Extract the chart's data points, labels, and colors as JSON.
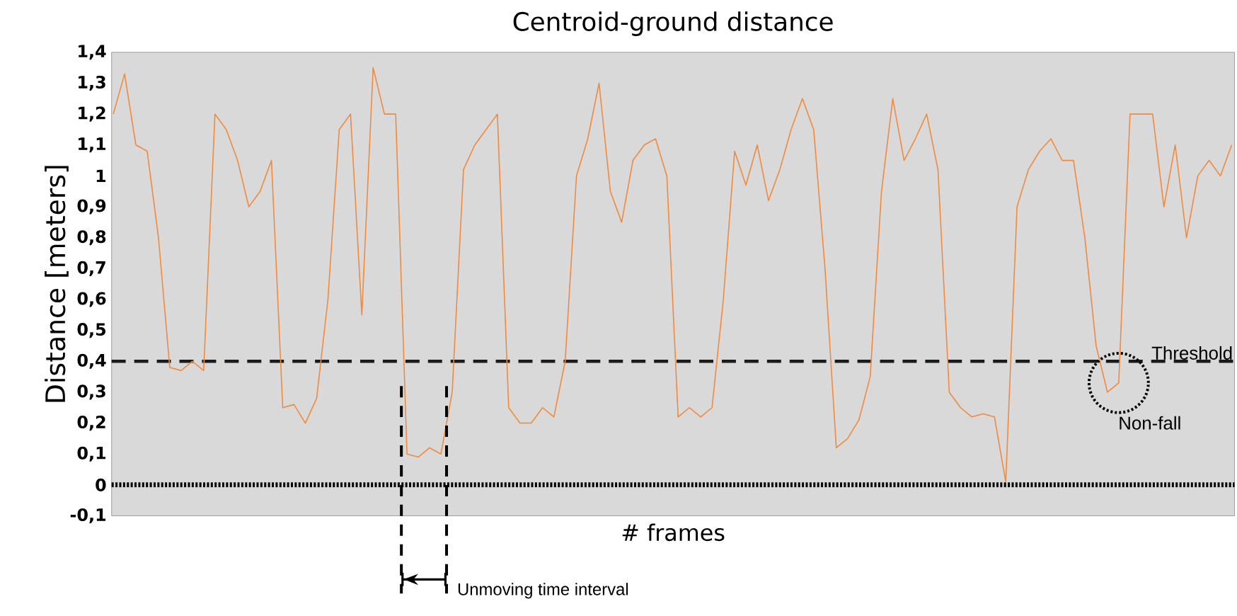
{
  "chart_data": {
    "type": "line",
    "title": "Centroid-ground distance",
    "xlabel": "# frames",
    "ylabel": "Distance [meters]",
    "categories": [
      null,
      null,
      null,
      null,
      null,
      null,
      null,
      null,
      null,
      null,
      null,
      null,
      null,
      null,
      null,
      null,
      null,
      null,
      null,
      null,
      null,
      null,
      null,
      null,
      null,
      null,
      null,
      null,
      null,
      null,
      null,
      null,
      null,
      null,
      null,
      null,
      null,
      null,
      null,
      null,
      null,
      null,
      null,
      null,
      null,
      null,
      null,
      null,
      null,
      null,
      null,
      null,
      null,
      null,
      null,
      null,
      null,
      null,
      null,
      null,
      null,
      null,
      null,
      null,
      null,
      null,
      null,
      null,
      null,
      null,
      null,
      null,
      null,
      null,
      null,
      null,
      null,
      null,
      null,
      null,
      null,
      null,
      null,
      null,
      null,
      null,
      null,
      null,
      null,
      null,
      null,
      null,
      null,
      null,
      null,
      null,
      null,
      null,
      null,
      null
    ],
    "series": [
      {
        "color": "#f08a3c",
        "values": [
          1.2,
          1.33,
          1.1,
          1.08,
          0.8,
          0.38,
          0.37,
          0.4,
          0.37,
          1.2,
          1.15,
          1.05,
          0.9,
          0.95,
          1.05,
          0.25,
          0.26,
          0.2,
          0.28,
          0.6,
          1.15,
          1.2,
          0.55,
          1.35,
          1.2,
          1.2,
          0.1,
          0.09,
          0.12,
          0.1,
          0.3,
          1.02,
          1.1,
          1.15,
          1.2,
          0.25,
          0.2,
          0.2,
          0.25,
          0.22,
          0.4,
          1.0,
          1.12,
          1.3,
          0.95,
          0.85,
          1.05,
          1.1,
          1.12,
          1.0,
          0.22,
          0.25,
          0.22,
          0.25,
          0.6,
          1.08,
          0.97,
          1.1,
          0.92,
          1.02,
          1.15,
          1.25,
          1.15,
          0.7,
          0.12,
          0.15,
          0.21,
          0.35,
          0.95,
          1.25,
          1.05,
          1.12,
          1.2,
          1.02,
          0.3,
          0.25,
          0.22,
          0.23,
          0.22,
          0.01,
          0.9,
          1.02,
          1.08,
          1.12,
          1.05,
          1.05,
          0.8,
          0.45,
          0.3,
          0.33,
          1.2,
          1.2,
          1.2,
          0.9,
          1.1,
          0.8,
          1.0,
          1.05,
          1.0,
          1.1
        ]
      }
    ],
    "marker": "none",
    "line_style": "solid",
    "ylim": [
      -0.1,
      1.4
    ],
    "yticks": [
      {
        "value": -0.1,
        "label": "-0,1"
      },
      {
        "value": 0,
        "label": "0"
      },
      {
        "value": 0.1,
        "label": "0,1"
      },
      {
        "value": 0.2,
        "label": "0,2"
      },
      {
        "value": 0.3,
        "label": "0,3"
      },
      {
        "value": 0.4,
        "label": "0,4"
      },
      {
        "value": 0.5,
        "label": "0,5"
      },
      {
        "value": 0.6,
        "label": "0,6"
      },
      {
        "value": 0.7,
        "label": "0,7"
      },
      {
        "value": 0.8,
        "label": "0,8"
      },
      {
        "value": 0.9,
        "label": "0,9"
      },
      {
        "value": 1,
        "label": "1"
      },
      {
        "value": 1.1,
        "label": "1,1"
      },
      {
        "value": 1.2,
        "label": "1,2"
      },
      {
        "value": 1.3,
        "label": "1,3"
      },
      {
        "value": 1.4,
        "label": "1,4"
      }
    ],
    "tick_labels": "y",
    "ref_lines": [
      {
        "axis": "y",
        "value": 0.4,
        "label": "Threshold",
        "color": "#1a1a1a",
        "line_style": "dashed"
      },
      {
        "axis": "y",
        "value": 0,
        "color": "#000000",
        "line_style": "dotted"
      }
    ],
    "annotations": [
      "Non-fall",
      "Unmoving time interval"
    ]
  }
}
